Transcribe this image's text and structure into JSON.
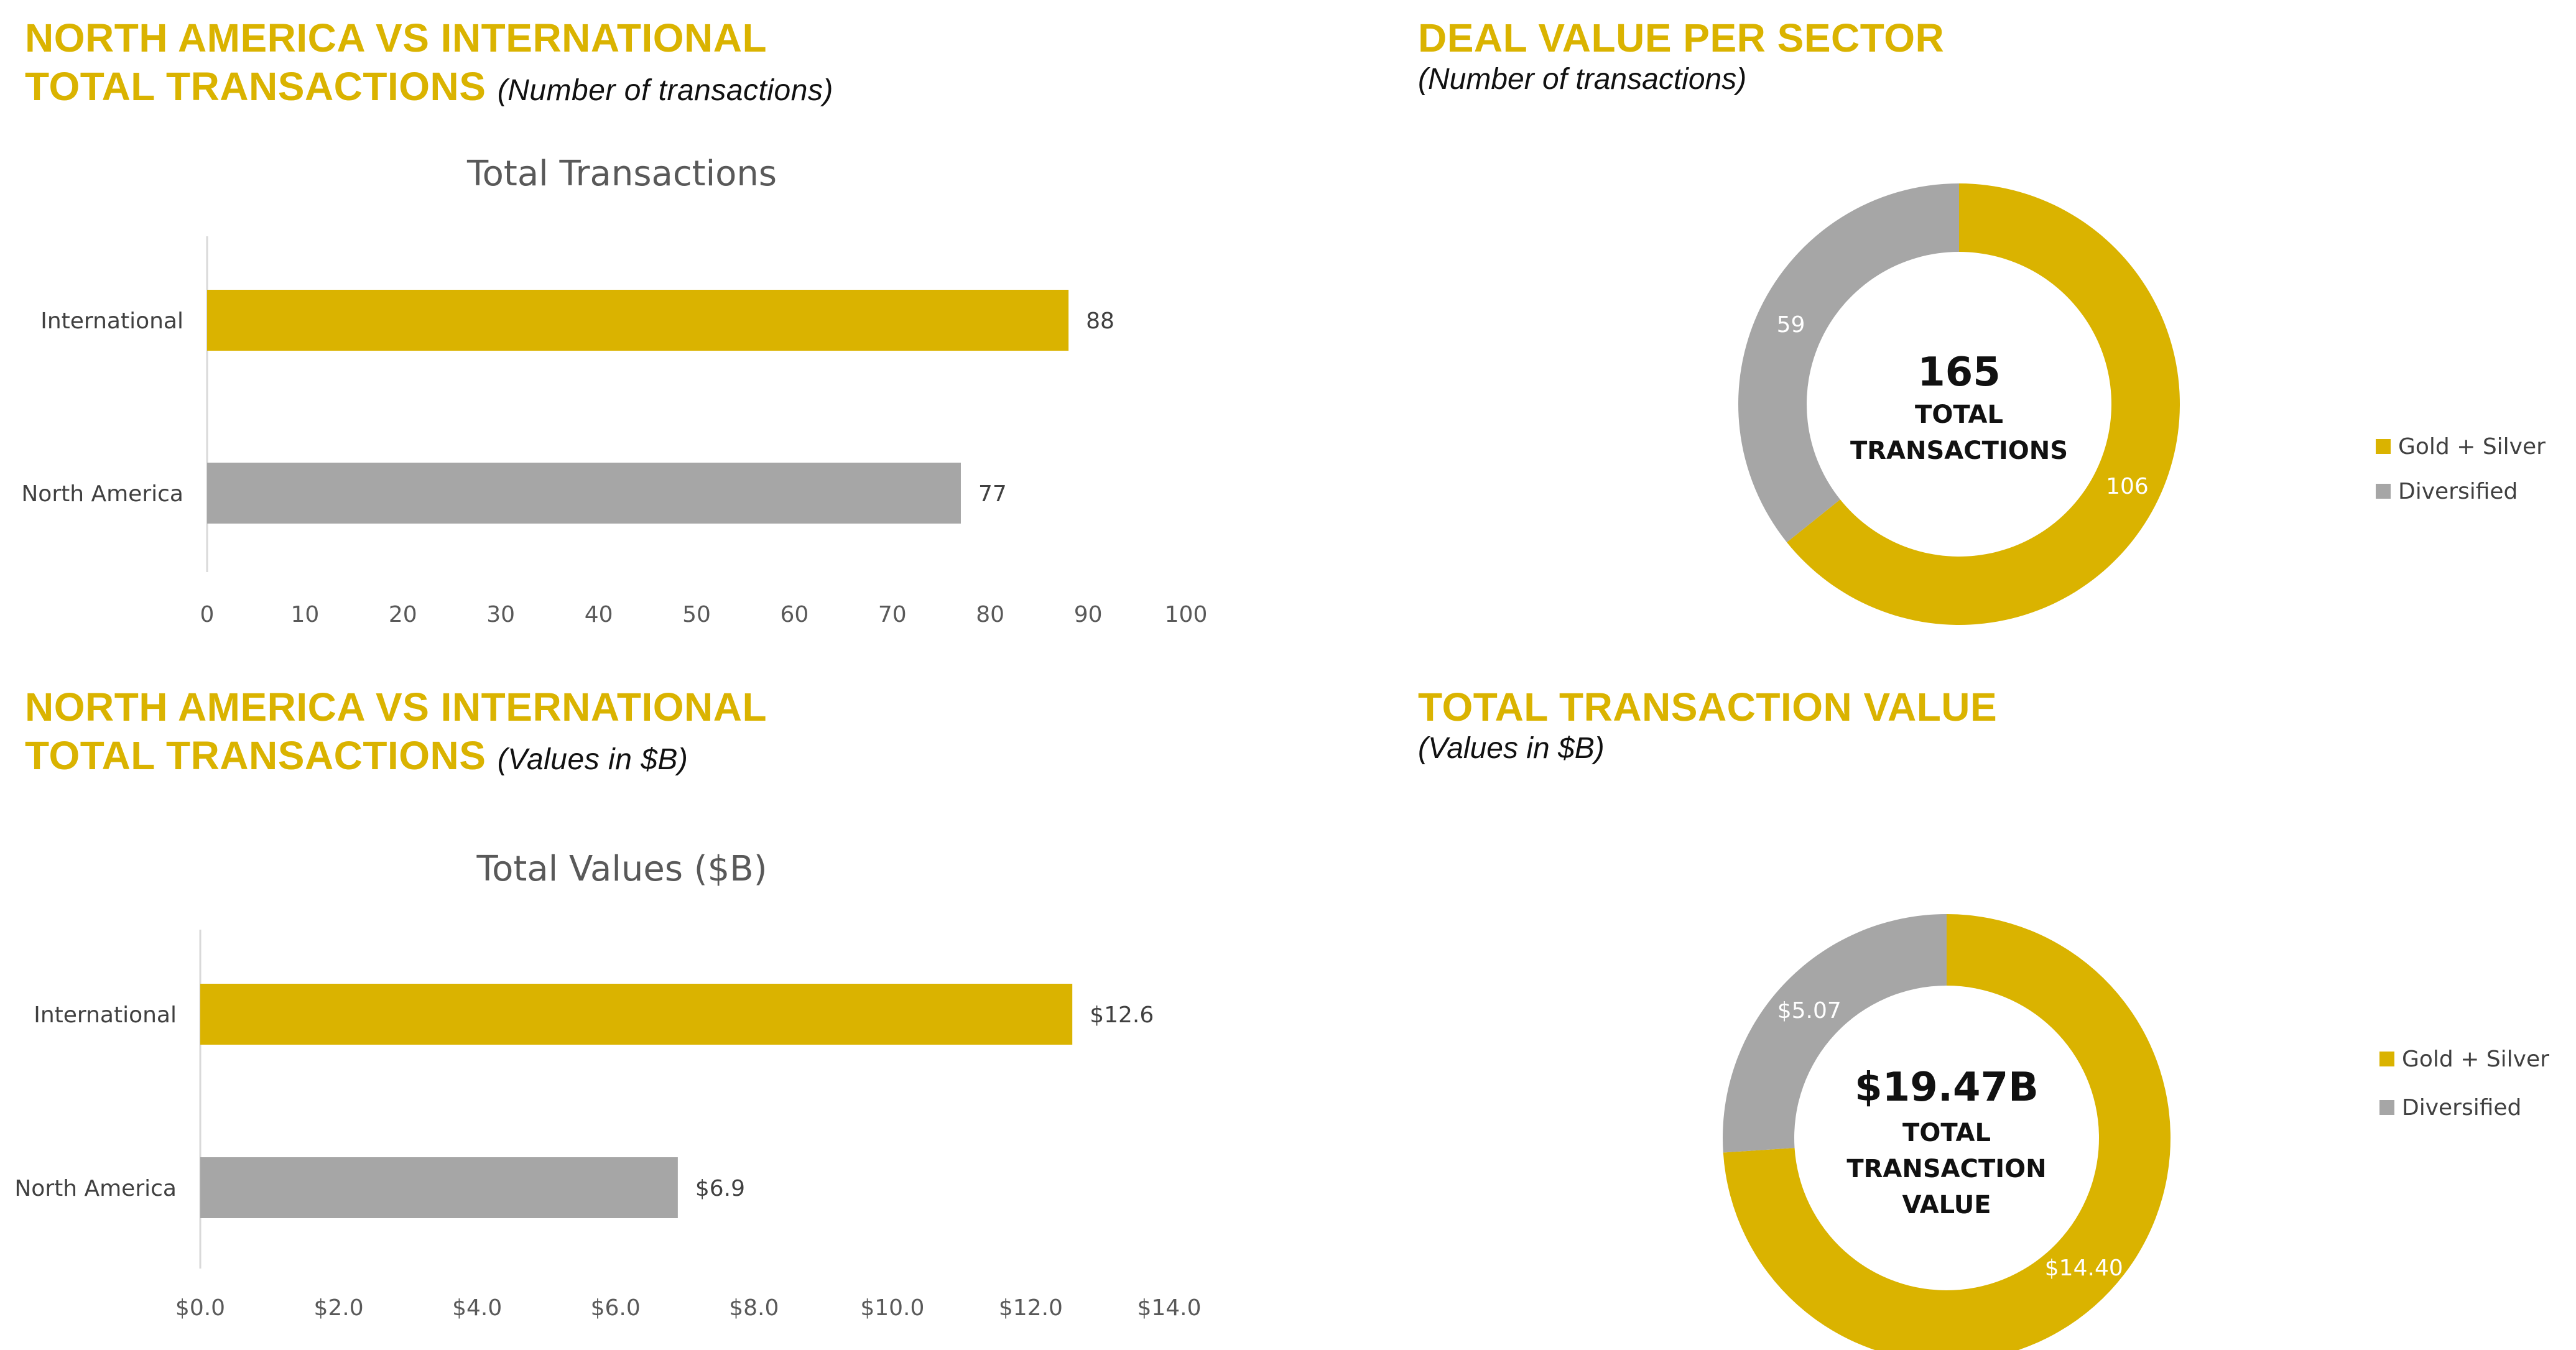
{
  "panels": {
    "top_left": {
      "heading_line1": "NORTH AMERICA VS INTERNATIONAL",
      "heading_line2": "TOTAL TRANSACTIONS",
      "subtitle": "(Number of transactions)"
    },
    "top_right": {
      "heading": "DEAL VALUE PER SECTOR",
      "subtitle": "(Number of transactions)"
    },
    "bottom_left": {
      "heading_line1": "NORTH AMERICA VS INTERNATIONAL",
      "heading_line2": "TOTAL TRANSACTIONS",
      "subtitle": "(Values in $B)"
    },
    "bottom_right": {
      "heading": "TOTAL TRANSACTION VALUE",
      "subtitle": "(Values in $B)"
    }
  },
  "colors": {
    "gold": "#DAB300",
    "gray": "#A6A6A6",
    "heading": "#DAB300"
  },
  "chart_data": [
    {
      "type": "bar",
      "orientation": "horizontal",
      "title": "Total Transactions",
      "categories": [
        "International",
        "North America"
      ],
      "values": [
        88,
        77
      ],
      "data_labels": [
        "88",
        "77"
      ],
      "colors": [
        "#DAB300",
        "#A6A6A6"
      ],
      "xlim": [
        0,
        100
      ],
      "xticks": [
        0,
        10,
        20,
        30,
        40,
        50,
        60,
        70,
        80,
        90,
        100
      ],
      "xtick_labels": [
        "0",
        "10",
        "20",
        "30",
        "40",
        "50",
        "60",
        "70",
        "80",
        "90",
        "100"
      ]
    },
    {
      "type": "pie",
      "donut": true,
      "labels": [
        "Gold + Silver",
        "Diversified"
      ],
      "values": [
        106,
        59
      ],
      "data_labels": [
        "106",
        "59"
      ],
      "colors": [
        "#DAB300",
        "#A6A6A6"
      ],
      "center_value": "165",
      "center_label_lines": [
        "TOTAL",
        "TRANSACTIONS"
      ],
      "legend_position": "right"
    },
    {
      "type": "bar",
      "orientation": "horizontal",
      "title": "Total Values ($B)",
      "categories": [
        "International",
        "North America"
      ],
      "values": [
        12.6,
        6.9
      ],
      "data_labels": [
        "$12.6",
        "$6.9"
      ],
      "colors": [
        "#DAB300",
        "#A6A6A6"
      ],
      "xlim": [
        0,
        14
      ],
      "xticks": [
        0,
        2,
        4,
        6,
        8,
        10,
        12,
        14
      ],
      "xtick_labels": [
        "$0.0",
        "$2.0",
        "$4.0",
        "$6.0",
        "$8.0",
        "$10.0",
        "$12.0",
        "$14.0"
      ]
    },
    {
      "type": "pie",
      "donut": true,
      "labels": [
        "Gold + Silver",
        "Diversified"
      ],
      "values": [
        14.4,
        5.07
      ],
      "data_labels": [
        "$14.40",
        "$5.07"
      ],
      "colors": [
        "#DAB300",
        "#A6A6A6"
      ],
      "center_value": "$19.47B",
      "center_label_lines": [
        "TOTAL",
        "TRANSACTION",
        "VALUE"
      ],
      "legend_position": "right"
    }
  ]
}
